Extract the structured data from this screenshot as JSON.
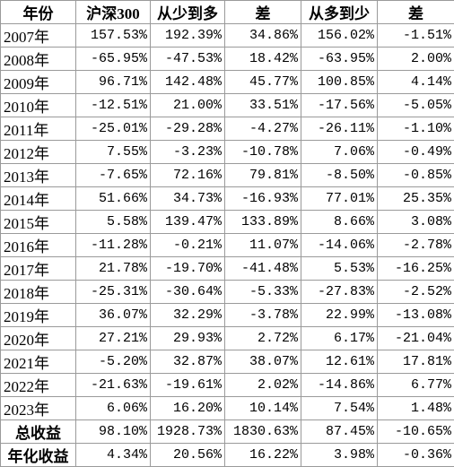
{
  "table": {
    "header": [
      "年份",
      "沪深300",
      "从少到多",
      "差",
      "从多到少",
      "差"
    ],
    "rows": [
      [
        "2007年",
        "157.53%",
        "192.39%",
        "34.86%",
        "156.02%",
        "-1.51%"
      ],
      [
        "2008年",
        "-65.95%",
        "-47.53%",
        "18.42%",
        "-63.95%",
        "2.00%"
      ],
      [
        "2009年",
        "96.71%",
        "142.48%",
        "45.77%",
        "100.85%",
        "4.14%"
      ],
      [
        "2010年",
        "-12.51%",
        "21.00%",
        "33.51%",
        "-17.56%",
        "-5.05%"
      ],
      [
        "2011年",
        "-25.01%",
        "-29.28%",
        "-4.27%",
        "-26.11%",
        "-1.10%"
      ],
      [
        "2012年",
        "7.55%",
        "-3.23%",
        "-10.78%",
        "7.06%",
        "-0.49%"
      ],
      [
        "2013年",
        "-7.65%",
        "72.16%",
        "79.81%",
        "-8.50%",
        "-0.85%"
      ],
      [
        "2014年",
        "51.66%",
        "34.73%",
        "-16.93%",
        "77.01%",
        "25.35%"
      ],
      [
        "2015年",
        "5.58%",
        "139.47%",
        "133.89%",
        "8.66%",
        "3.08%"
      ],
      [
        "2016年",
        "-11.28%",
        "-0.21%",
        "11.07%",
        "-14.06%",
        "-2.78%"
      ],
      [
        "2017年",
        "21.78%",
        "-19.70%",
        "-41.48%",
        "5.53%",
        "-16.25%"
      ],
      [
        "2018年",
        "-25.31%",
        "-30.64%",
        "-5.33%",
        "-27.83%",
        "-2.52%"
      ],
      [
        "2019年",
        "36.07%",
        "32.29%",
        "-3.78%",
        "22.99%",
        "-13.08%"
      ],
      [
        "2020年",
        "27.21%",
        "29.93%",
        "2.72%",
        "6.17%",
        "-21.04%"
      ],
      [
        "2021年",
        "-5.20%",
        "32.87%",
        "38.07%",
        "12.61%",
        "17.81%"
      ],
      [
        "2022年",
        "-21.63%",
        "-19.61%",
        "2.02%",
        "-14.86%",
        "6.77%"
      ],
      [
        "2023年",
        "6.06%",
        "16.20%",
        "10.14%",
        "7.54%",
        "1.48%"
      ],
      [
        "总收益",
        "98.10%",
        "1928.73%",
        "1830.63%",
        "87.45%",
        "-10.65%"
      ],
      [
        "年化收益",
        "4.34%",
        "20.56%",
        "16.22%",
        "3.98%",
        "-0.36%"
      ]
    ]
  }
}
